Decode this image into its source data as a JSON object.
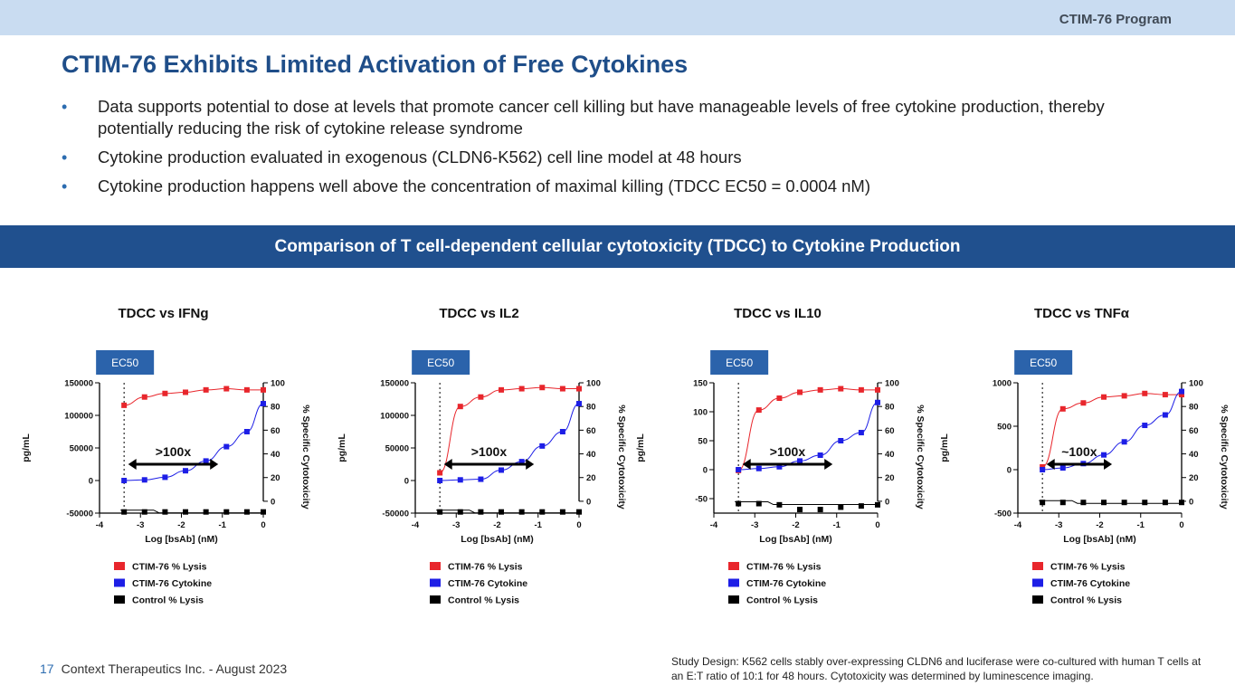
{
  "header": {
    "program": "CTIM-76 Program"
  },
  "title": "CTIM-76 Exhibits Limited Activation of Free Cytokines",
  "bullets": [
    "Data supports potential to dose at levels that promote cancer cell killing but have manageable levels of free cytokine production, thereby potentially reducing the risk of cytokine release syndrome",
    "Cytokine production evaluated in exogenous (CLDN6-K562) cell line model at 48 hours",
    "Cytokine production happens well above the concentration of maximal killing (TDCC EC50 = 0.0004 nM)"
  ],
  "section_title": "Comparison of T cell-dependent cellular cytotoxicity (TDCC) to Cytokine Production",
  "footer": {
    "page": "17",
    "company": "Context Therapeutics Inc. - August 2023",
    "study_design": "Study Design:  K562 cells stably over-expressing CLDN6 and luciferase were co-cultured with human T cells at an E:T ratio of 10:1 for 48 hours. Cytotoxicity was determined by luminescence imaging."
  },
  "colors": {
    "lysis": "#e8262c",
    "cytokine": "#1d1ee6",
    "control": "#000000",
    "ec50_box": "#2b63ab",
    "brand": "#1f4e89"
  },
  "chart_data": [
    {
      "type": "scatter",
      "title": "TDCC vs IFNg",
      "xlabel": "Log [bsAb] (nM)",
      "ylabel": "pg/mL",
      "y2label": "% Specific Cytotoxicity",
      "xlim": [
        -4,
        0
      ],
      "xticks": [
        "-4",
        "-3",
        "-2",
        "-1",
        "0"
      ],
      "ylim": [
        -50000,
        150000
      ],
      "yticks": [
        "-50000",
        "0",
        "50000",
        "100000",
        "150000"
      ],
      "y2lim": [
        -10,
        100
      ],
      "y2ticks": [
        "0",
        "20",
        "40",
        "60",
        "80",
        "100"
      ],
      "ec50_label": "EC50",
      "ec50_x": -3.4,
      "fold_label": ">100x",
      "fold_range": [
        -3.3,
        -1.1
      ],
      "x": [
        -3.4,
        -2.9,
        -2.4,
        -1.9,
        -1.4,
        -0.9,
        -0.4,
        0
      ],
      "series": [
        {
          "name": "CTIM-76 % Lysis",
          "axis": "right",
          "values": [
            81,
            88,
            91,
            92,
            94,
            95,
            94,
            94
          ]
        },
        {
          "name": "CTIM-76 Cytokine",
          "axis": "left",
          "values": [
            0,
            1000,
            5000,
            15000,
            30000,
            52000,
            75000,
            118000
          ]
        },
        {
          "name": "Control % Lysis",
          "axis": "right",
          "values": [
            -9,
            -9,
            -9,
            -9,
            -9,
            -9,
            -9,
            -9
          ]
        }
      ]
    },
    {
      "type": "scatter",
      "title": "TDCC vs IL2",
      "xlabel": "Log [bsAb] (nM)",
      "ylabel": "pg/mL",
      "y2label": "% Specific Cytotoxicity",
      "xlim": [
        -4,
        0
      ],
      "xticks": [
        "-4",
        "-3",
        "-2",
        "-1",
        "0"
      ],
      "ylim": [
        -50000,
        150000
      ],
      "yticks": [
        "-50000",
        "0",
        "50000",
        "100000",
        "150000"
      ],
      "y2lim": [
        -10,
        100
      ],
      "y2ticks": [
        "0",
        "20",
        "40",
        "60",
        "80",
        "100"
      ],
      "ec50_label": "EC50",
      "ec50_x": -3.4,
      "fold_label": ">100x",
      "fold_range": [
        -3.3,
        -1.1
      ],
      "x": [
        -3.4,
        -2.9,
        -2.4,
        -1.9,
        -1.4,
        -0.9,
        -0.4,
        0
      ],
      "series": [
        {
          "name": "CTIM-76 % Lysis",
          "axis": "right",
          "values": [
            24,
            80,
            88,
            94,
            95,
            96,
            95,
            95
          ]
        },
        {
          "name": "CTIM-76 Cytokine",
          "axis": "left",
          "values": [
            0,
            1000,
            2000,
            16000,
            29000,
            53000,
            75000,
            118000
          ]
        },
        {
          "name": "Control % Lysis",
          "axis": "right",
          "values": [
            -9,
            -9,
            -9,
            -9,
            -9,
            -9,
            -9,
            -9
          ]
        }
      ]
    },
    {
      "type": "scatter",
      "title": "TDCC vs IL10",
      "xlabel": "Log [bsAb] (nM)",
      "ylabel": "pg/mL",
      "y2label": "% Specific Cytotoxicity",
      "xlim": [
        -4,
        0
      ],
      "xticks": [
        "-4",
        "-3",
        "-2",
        "-1",
        "0"
      ],
      "ylim": [
        -75,
        150
      ],
      "yticks": [
        "-50",
        "0",
        "50",
        "100",
        "150"
      ],
      "y2lim": [
        -10,
        100
      ],
      "y2ticks": [
        "0",
        "20",
        "40",
        "60",
        "80",
        "100"
      ],
      "ec50_label": "EC50",
      "ec50_x": -3.4,
      "fold_label": ">100x",
      "fold_range": [
        -3.3,
        -1.1
      ],
      "x": [
        -3.4,
        -2.9,
        -2.4,
        -1.9,
        -1.4,
        -0.9,
        -0.4,
        0
      ],
      "series": [
        {
          "name": "CTIM-76 % Lysis",
          "axis": "right",
          "values": [
            26,
            77,
            87,
            92,
            94,
            95,
            94,
            94
          ]
        },
        {
          "name": "CTIM-76 Cytokine",
          "axis": "left",
          "values": [
            0,
            2,
            5,
            15,
            25,
            50,
            64,
            116
          ]
        },
        {
          "name": "Control % Lysis",
          "axis": "right",
          "values": [
            -2,
            -2,
            -3,
            -7,
            -7,
            -5,
            -4,
            -3
          ]
        }
      ]
    },
    {
      "type": "scatter",
      "title": "TDCC vs TNFα",
      "xlabel": "Log [bsAb] (nM)",
      "ylabel": "pg/mL",
      "y2label": "% Specific Cytotoxicity",
      "xlim": [
        -4,
        0
      ],
      "xticks": [
        "-4",
        "-3",
        "-2",
        "-1",
        "0"
      ],
      "ylim": [
        -500,
        1000
      ],
      "yticks": [
        "-500",
        "0",
        "500",
        "1000"
      ],
      "y2lim": [
        -10,
        100
      ],
      "y2ticks": [
        "0",
        "20",
        "40",
        "60",
        "80",
        "100"
      ],
      "ec50_label": "EC50",
      "ec50_x": -3.4,
      "fold_label": "~100x",
      "fold_range": [
        -3.3,
        -1.7
      ],
      "x": [
        -3.4,
        -2.9,
        -2.4,
        -1.9,
        -1.4,
        -0.9,
        -0.4,
        0
      ],
      "series": [
        {
          "name": "CTIM-76 % Lysis",
          "axis": "right",
          "values": [
            29,
            78,
            83,
            88,
            89,
            91,
            90,
            90
          ]
        },
        {
          "name": "CTIM-76 Cytokine",
          "axis": "left",
          "values": [
            0,
            20,
            70,
            170,
            320,
            510,
            630,
            900
          ]
        },
        {
          "name": "Control % Lysis",
          "axis": "right",
          "values": [
            -1,
            -1,
            -1,
            -1,
            -1,
            -1,
            -1,
            -1
          ]
        }
      ]
    }
  ]
}
